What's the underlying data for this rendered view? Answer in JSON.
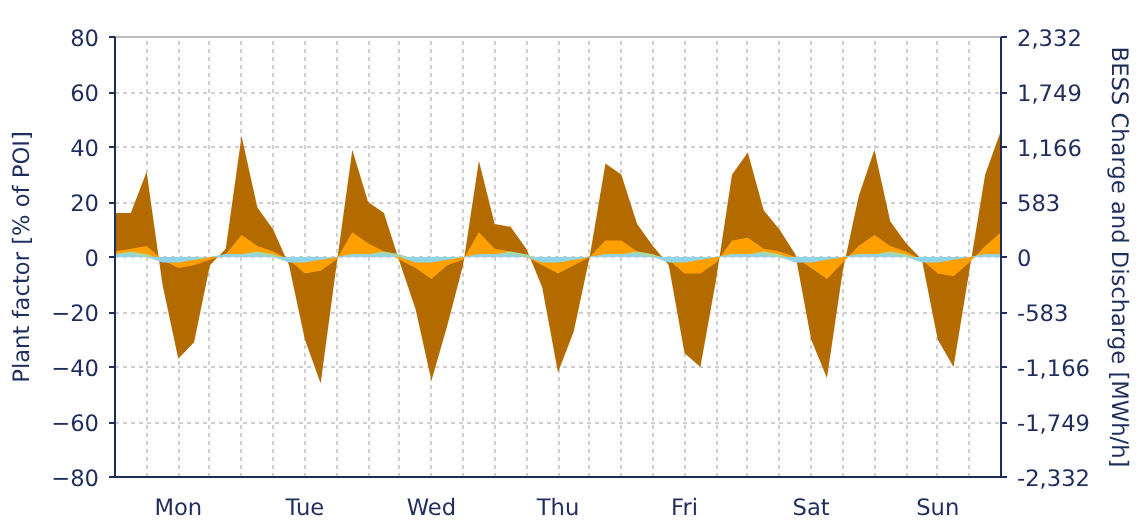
{
  "chart_data": {
    "type": "area",
    "ylabel": "Plant factor [% of POI]",
    "y2label": "BESS Charge and Discharge [MWh/h]",
    "categories": [
      null,
      null,
      null,
      null,
      "Mon",
      null,
      null,
      null,
      null,
      null,
      null,
      null,
      "Tue",
      null,
      null,
      null,
      null,
      null,
      null,
      null,
      "Wed",
      null,
      null,
      null,
      null,
      null,
      null,
      null,
      "Thu",
      null,
      null,
      null,
      null,
      null,
      null,
      null,
      "Fri",
      null,
      null,
      null,
      null,
      null,
      null,
      null,
      "Sat",
      null,
      null,
      null,
      null,
      null,
      null,
      null,
      "Sun",
      null,
      null,
      null,
      null
    ],
    "ylim": [
      -80,
      80
    ],
    "yticks": [
      -80,
      -60,
      -40,
      -20,
      0,
      20,
      40,
      60,
      80
    ],
    "y2lim": [
      -2332,
      2332
    ],
    "y2ticks": [
      {
        "value": -2332,
        "label": "-2,332"
      },
      {
        "value": -1749,
        "label": "-1,749"
      },
      {
        "value": -1166,
        "label": "-1,166"
      },
      {
        "value": -583,
        "label": "-583"
      },
      0,
      583,
      {
        "value": 1166,
        "label": "1,166"
      },
      {
        "value": 1749,
        "label": "1,749"
      },
      {
        "value": 2332,
        "label": "2,332"
      }
    ],
    "grid": true,
    "series": [
      {
        "color": "#b36b00",
        "values": [
          16,
          16,
          31,
          -10,
          -37,
          -31,
          -3,
          3,
          44,
          18,
          10,
          -3,
          -30,
          -46,
          -3,
          39,
          20,
          16,
          -2,
          -19,
          -45,
          -25,
          -3,
          35,
          12,
          11,
          3,
          -11,
          -42,
          -27,
          0,
          34,
          30,
          12,
          4,
          -3,
          -35,
          -40,
          -8,
          30,
          38,
          17,
          10,
          1,
          -30,
          -44,
          -5,
          22,
          39,
          13,
          5,
          -1,
          -30,
          -40,
          -5,
          30,
          46
        ]
      },
      {
        "color": "#ffa000",
        "values": [
          2,
          3,
          4,
          -1,
          -4,
          -3,
          -1,
          1,
          8,
          4,
          2,
          -1,
          -6,
          -5,
          -1,
          9,
          5,
          2,
          -1,
          -4,
          -8,
          -3,
          -1,
          9,
          3,
          2,
          0,
          -3,
          -6,
          -3,
          0,
          6,
          6,
          2,
          1,
          -1,
          -6,
          -6,
          -2,
          6,
          7,
          3,
          2,
          0,
          -4,
          -8,
          -2,
          4,
          8,
          4,
          2,
          -1,
          -6,
          -7,
          -2,
          4,
          9
        ]
      },
      {
        "color": "#a8d8a8",
        "values": [
          1,
          2,
          1,
          -1,
          -1,
          -1,
          0,
          1,
          1,
          2,
          1,
          -1,
          -1,
          -1,
          0,
          1,
          1,
          2,
          1,
          -1,
          -1,
          -1,
          0,
          1,
          1,
          2,
          1,
          -1,
          -1,
          -1,
          0,
          1,
          1,
          2,
          1,
          -1,
          -1,
          -1,
          0,
          1,
          1,
          2,
          1,
          -1,
          -1,
          -1,
          0,
          1,
          1,
          2,
          1,
          -1,
          -1,
          -1,
          0,
          1,
          1
        ]
      },
      {
        "color": "#8fd3e6",
        "values": [
          1,
          1,
          0,
          -2,
          -2,
          -1,
          0,
          1,
          1,
          1,
          0,
          -2,
          -2,
          -1,
          0,
          1,
          1,
          1,
          0,
          -2,
          -2,
          -1,
          0,
          1,
          1,
          1,
          0,
          -2,
          -2,
          -1,
          0,
          1,
          1,
          1,
          0,
          -2,
          -2,
          -1,
          0,
          1,
          1,
          1,
          0,
          -2,
          -2,
          -1,
          0,
          1,
          1,
          1,
          0,
          -2,
          -2,
          -1,
          0,
          1,
          1
        ]
      }
    ]
  }
}
